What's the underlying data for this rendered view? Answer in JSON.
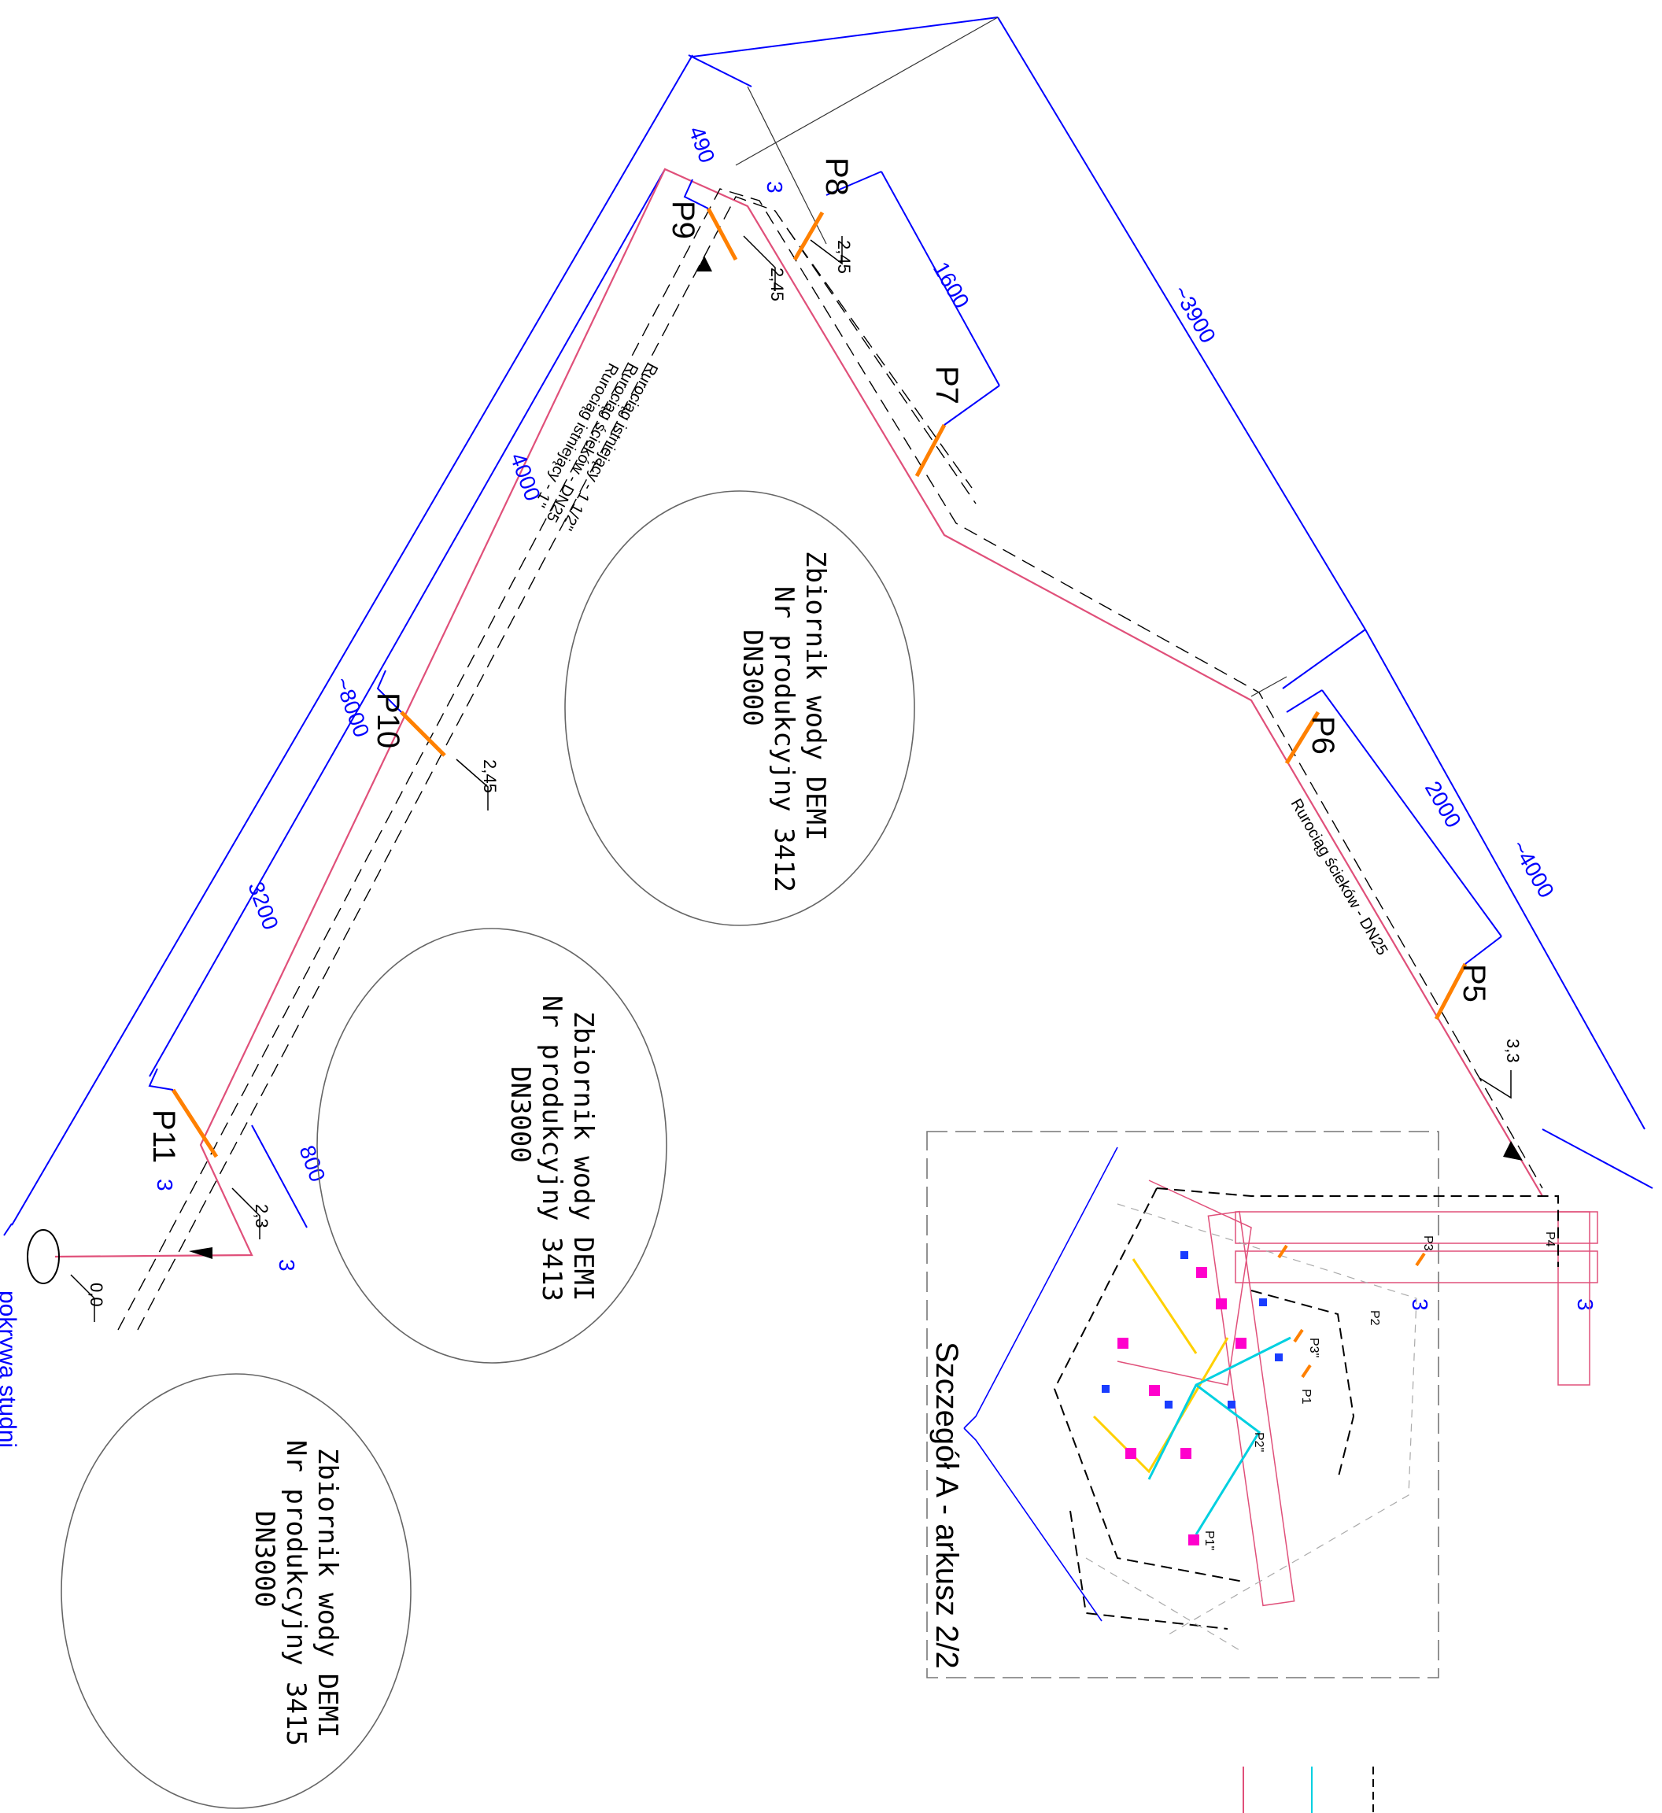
{
  "colors": {
    "dimension": "#0000ff",
    "pipe": "#e0507a",
    "marker": "#ff8000",
    "outline": "#555555",
    "aux": "#00d0e0",
    "text": "#000000"
  },
  "points": {
    "p5": "P5",
    "p6": "P6",
    "p7": "P7",
    "p8": "P8",
    "p9": "P9",
    "p10": "P10",
    "p11": "P11"
  },
  "dimensions": {
    "d490": "490",
    "d4000": "4000",
    "d8000": "~8000",
    "d3200": "3200",
    "d800": "800",
    "d1600": "1600",
    "d3900": "~3900",
    "d2000": "2000",
    "d4000b": "~4000"
  },
  "elevations": {
    "e245a": "2,45",
    "e245b": "2,45",
    "e245c": "2,45",
    "e23": "2,3",
    "e33": "3,3",
    "e00": "0,0"
  },
  "section_marks": {
    "s3a": "3",
    "s3b": "3",
    "s3c": "3",
    "s3d": "3",
    "s3e": "3"
  },
  "pipe_labels": {
    "l1": "Rurociąg istniejący - 1 1/2\"",
    "l2": "Rurociąg ścieków - DN25",
    "l3": "Rurociąg istniejący - 1\"",
    "l4": "Rurociąg ścieków - DN25"
  },
  "tanks": [
    {
      "line1": "Zbiornik wody DEMI",
      "line2": "Nr produkcyjny 3412",
      "line3": "DN3000"
    },
    {
      "line1": "Zbiornik wody DEMI",
      "line2": "Nr produkcyjny 3413",
      "line3": "DN3000"
    },
    {
      "line1": "Zbiornik wody DEMI",
      "line2": "Nr produkcyjny 3415",
      "line3": "DN3000"
    }
  ],
  "detail": {
    "title": "Szczegół A - arkusz 2/2",
    "p1": "P1",
    "p2": "P2",
    "p3": "P3",
    "p4": "P4",
    "p1b": "P1\"",
    "p2b": "P2\"",
    "p3b": "P3\""
  },
  "manhole_label": "pokrywa studni"
}
